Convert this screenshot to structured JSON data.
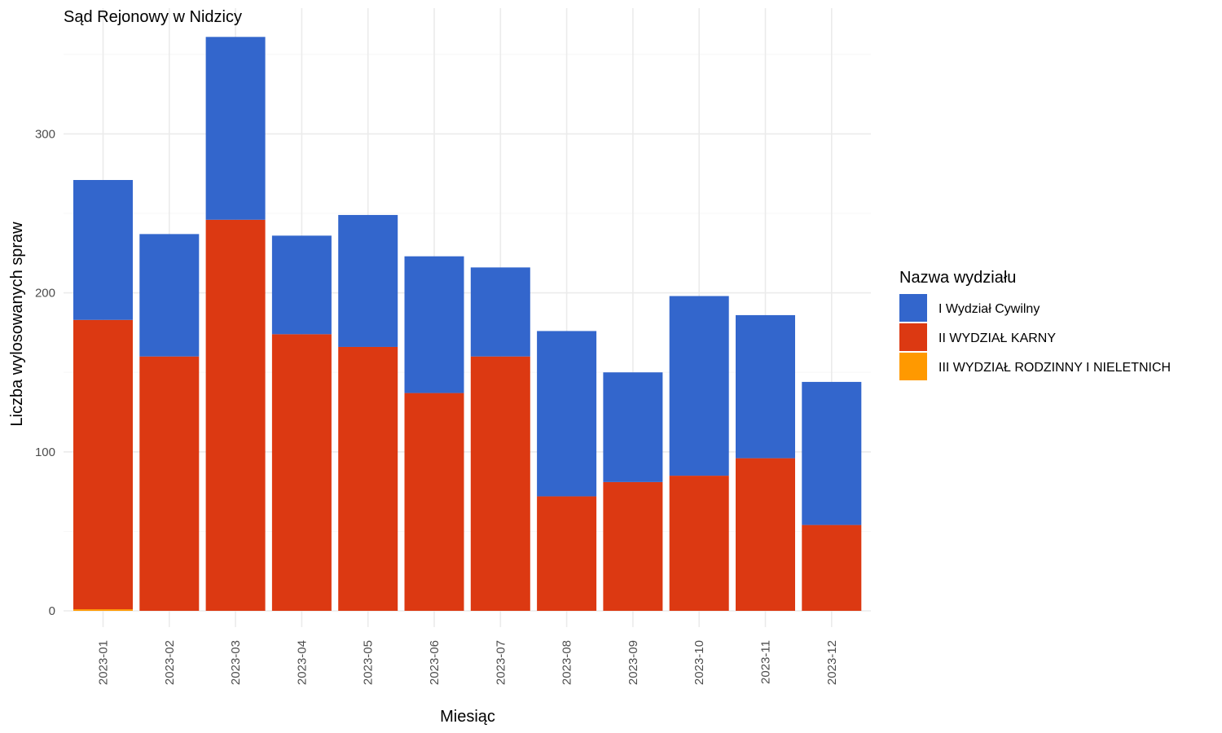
{
  "chart_data": {
    "type": "bar",
    "stacked": true,
    "title": "Sąd Rejonowy w Nidzicy",
    "xlabel": "Miesiąc",
    "ylabel": "Liczba wylosowanych spraw",
    "categories": [
      "2023-01",
      "2023-02",
      "2023-03",
      "2023-04",
      "2023-05",
      "2023-06",
      "2023-07",
      "2023-08",
      "2023-09",
      "2023-10",
      "2023-11",
      "2023-12"
    ],
    "series": [
      {
        "name": "III WYDZIAŁ RODZINNY I NIELETNICH",
        "color": "#FF9900",
        "values": [
          1,
          0,
          0,
          0,
          0,
          0,
          0,
          0,
          0,
          0,
          0,
          0
        ]
      },
      {
        "name": "II WYDZIAŁ KARNY",
        "color": "#DC3912",
        "values": [
          182,
          160,
          246,
          174,
          166,
          137,
          160,
          72,
          81,
          85,
          96,
          54
        ]
      },
      {
        "name": "I Wydział Cywilny",
        "color": "#3366CC",
        "values": [
          88,
          77,
          115,
          62,
          83,
          86,
          56,
          104,
          69,
          113,
          90,
          90
        ]
      }
    ],
    "yticks": [
      0,
      100,
      200,
      300
    ],
    "ylim": [
      0,
      375
    ],
    "grid": true,
    "legend": {
      "title": "Nazwa wydziału",
      "position": "right",
      "items": [
        "I Wydział Cywilny",
        "II WYDZIAŁ KARNY",
        "III WYDZIAŁ RODZINNY I NIELETNICH"
      ]
    }
  }
}
